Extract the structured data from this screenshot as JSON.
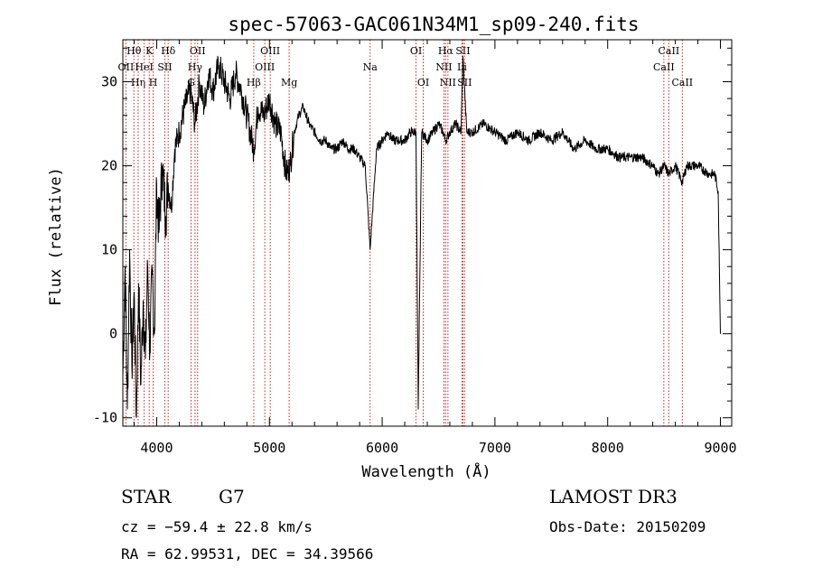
{
  "chart_data": {
    "type": "line",
    "title": "spec-57063-GAC061N34M1_sp09-240.fits",
    "xlabel": "Wavelength (Å)",
    "ylabel": "Flux (relative)",
    "xlim": [
      3700,
      9100
    ],
    "ylim": [
      -11,
      35
    ],
    "xticks": [
      4000,
      5000,
      6000,
      7000,
      8000,
      9000
    ],
    "yticks": [
      -10,
      0,
      10,
      20,
      30
    ],
    "grid": false,
    "series": [
      {
        "name": "flux",
        "x": [
          3700,
          3720,
          3740,
          3760,
          3780,
          3800,
          3820,
          3840,
          3860,
          3880,
          3900,
          3920,
          3940,
          3960,
          3980,
          4000,
          4020,
          4050,
          4080,
          4100,
          4130,
          4160,
          4200,
          4250,
          4300,
          4340,
          4380,
          4420,
          4460,
          4500,
          4550,
          4600,
          4650,
          4700,
          4750,
          4800,
          4861,
          4900,
          4950,
          5000,
          5050,
          5100,
          5150,
          5183,
          5220,
          5260,
          5300,
          5350,
          5400,
          5450,
          5500,
          5550,
          5600,
          5650,
          5700,
          5750,
          5800,
          5850,
          5893,
          5950,
          6000,
          6050,
          6100,
          6150,
          6200,
          6250,
          6300,
          6320,
          6350,
          6400,
          6450,
          6500,
          6540,
          6563,
          6600,
          6650,
          6700,
          6716,
          6750,
          6800,
          6900,
          7000,
          7100,
          7200,
          7300,
          7400,
          7500,
          7600,
          7700,
          7800,
          7900,
          8000,
          8100,
          8200,
          8300,
          8400,
          8450,
          8500,
          8542,
          8600,
          8662,
          8700,
          8800,
          8900,
          8950,
          8980,
          9000
        ],
        "values": [
          -5,
          8,
          -9,
          10,
          -4,
          5,
          -10,
          6,
          -6,
          4,
          -3,
          8,
          -2,
          7,
          0,
          18,
          12,
          20,
          14,
          18,
          15,
          22,
          24,
          27,
          29,
          25,
          30,
          27,
          31,
          29,
          32,
          30,
          28,
          31,
          29,
          26,
          22,
          27,
          26,
          28,
          25,
          24,
          19,
          20,
          24,
          26,
          27,
          25,
          24,
          23,
          23,
          22,
          22,
          23,
          22,
          22,
          21,
          20,
          10,
          22,
          23,
          24,
          23,
          23,
          23,
          24,
          24,
          -9,
          24,
          23,
          24,
          25,
          24,
          23,
          24,
          25,
          24,
          33,
          24,
          24,
          25,
          24,
          23,
          24,
          23,
          24,
          23,
          24,
          22,
          23,
          22,
          22,
          21,
          21,
          21,
          20,
          19,
          20,
          19,
          20,
          18,
          20,
          20,
          19,
          19,
          17,
          0
        ]
      }
    ],
    "line_markers": [
      {
        "label": "Hθ",
        "wavelength": 3798,
        "row": 1
      },
      {
        "label": "OII",
        "wavelength": 3727,
        "row": 2
      },
      {
        "label": "Hη",
        "wavelength": 3836,
        "row": 3
      },
      {
        "label": "K",
        "wavelength": 3934,
        "row": 1
      },
      {
        "label": "HeI",
        "wavelength": 3889,
        "row": 2
      },
      {
        "label": "H",
        "wavelength": 3969,
        "row": 3
      },
      {
        "label": "Hδ",
        "wavelength": 4102,
        "row": 1
      },
      {
        "label": "SII",
        "wavelength": 4072,
        "row": 2
      },
      {
        "label": "OII",
        "wavelength": 4363,
        "row": 1
      },
      {
        "label": "Hγ",
        "wavelength": 4340,
        "row": 2
      },
      {
        "label": "G",
        "wavelength": 4305,
        "row": 3
      },
      {
        "label": "OIII",
        "wavelength": 5007,
        "row": 1
      },
      {
        "label": "OIII",
        "wavelength": 4959,
        "row": 2
      },
      {
        "label": "Hβ",
        "wavelength": 4861,
        "row": 3
      },
      {
        "label": "Mg",
        "wavelength": 5175,
        "row": 3
      },
      {
        "label": "Na",
        "wavelength": 5893,
        "row": 2
      },
      {
        "label": "OI",
        "wavelength": 6300,
        "row": 1
      },
      {
        "label": "OI",
        "wavelength": 6364,
        "row": 3
      },
      {
        "label": "Hα",
        "wavelength": 6563,
        "row": 1
      },
      {
        "label": "NII",
        "wavelength": 6548,
        "row": 2
      },
      {
        "label": "NII",
        "wavelength": 6583,
        "row": 3
      },
      {
        "label": "SII",
        "wavelength": 6716,
        "row": 1
      },
      {
        "label": "Li",
        "wavelength": 6708,
        "row": 2
      },
      {
        "label": "SII",
        "wavelength": 6731,
        "row": 3
      },
      {
        "label": "CaII",
        "wavelength": 8542,
        "row": 1
      },
      {
        "label": "CaII",
        "wavelength": 8498,
        "row": 2
      },
      {
        "label": "CaII",
        "wavelength": 8662,
        "row": 3
      }
    ]
  },
  "info": {
    "class": "STAR",
    "subclass": "G7",
    "survey": "LAMOST DR3",
    "cz": "cz = −59.4 ± 22.8 km/s",
    "obs_date": "Obs-Date: 20150209",
    "coords": "RA =  62.99531, DEC =  34.39566"
  }
}
